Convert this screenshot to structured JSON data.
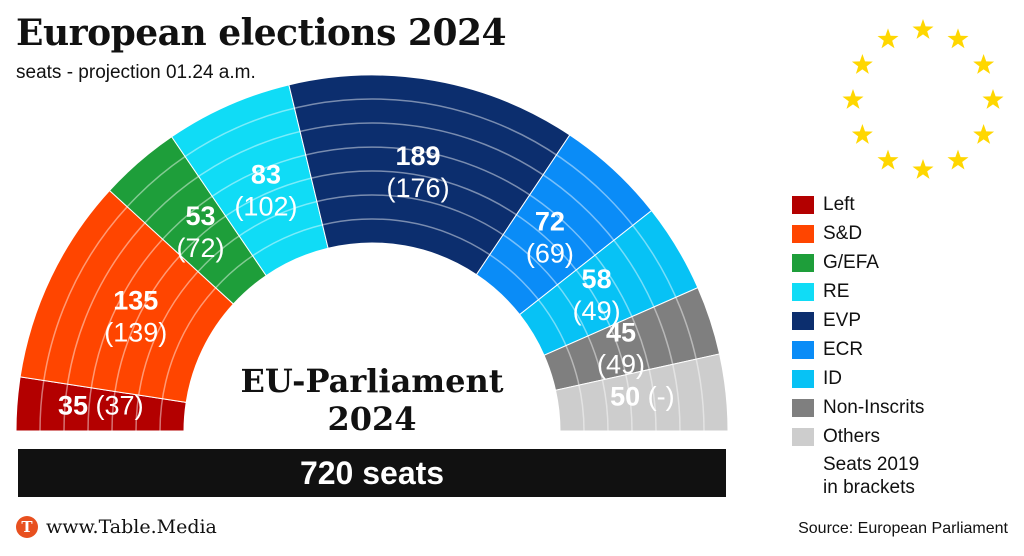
{
  "title": "European elections 2024",
  "subtitle": "seats - projection 01.24 a.m.",
  "center_label_line1": "EU-Parliament",
  "center_label_line2": "2024",
  "total_label": "720 seats",
  "legend_note_line1": "Seats 2019",
  "legend_note_line2": "in brackets",
  "footer_url": "www.Table.Media",
  "logo_letter": "T",
  "source": "Source: European Parliament",
  "chart_data": {
    "type": "parliament-semicircle",
    "title": "European elections 2024",
    "total_seats": 720,
    "series": [
      {
        "name": "Left",
        "seats": 35,
        "seats_2019": "37",
        "label": "35",
        "label_2019": "(37)",
        "color": "#b30000",
        "text_color": "#ffffff"
      },
      {
        "name": "S&D",
        "seats": 135,
        "seats_2019": "139",
        "label": "135",
        "label_2019": "(139)",
        "color": "#ff4500",
        "text_color": "#ffffff"
      },
      {
        "name": "G/EFA",
        "seats": 53,
        "seats_2019": "72",
        "label": "53",
        "label_2019": "(72)",
        "color": "#1e9e3a",
        "text_color": "#ffffff"
      },
      {
        "name": "RE",
        "seats": 83,
        "seats_2019": "102",
        "label": "83",
        "label_2019": "(102)",
        "color": "#10dcf6",
        "text_color": "#ffffff"
      },
      {
        "name": "EVP",
        "seats": 189,
        "seats_2019": "176",
        "label": "189",
        "label_2019": "(176)",
        "color": "#0c2e6e",
        "text_color": "#ffffff"
      },
      {
        "name": "ECR",
        "seats": 72,
        "seats_2019": "69",
        "label": "72",
        "label_2019": "(69)",
        "color": "#0a8cf7",
        "text_color": "#ffffff"
      },
      {
        "name": "ID",
        "seats": 58,
        "seats_2019": "49",
        "label": "58",
        "label_2019": "(49)",
        "color": "#07c2f5",
        "text_color": "#ffffff"
      },
      {
        "name": "Non-Inscrits",
        "seats": 45,
        "seats_2019": "49",
        "label": "45",
        "label_2019": "(49)",
        "color": "#7f7f7f",
        "text_color": "#ffffff"
      },
      {
        "name": "Others",
        "seats": 50,
        "seats_2019": "-",
        "label": "50",
        "label_2019": "(-)",
        "color": "#cdcdcd",
        "text_color": "#ffffff"
      }
    ]
  }
}
